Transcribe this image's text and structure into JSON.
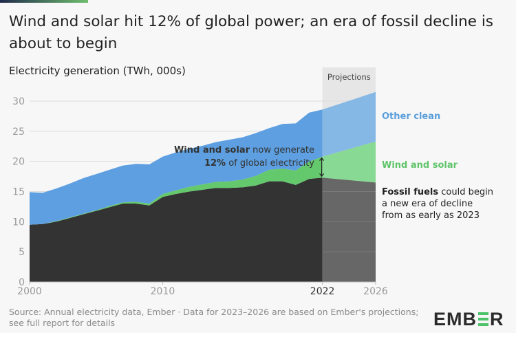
{
  "title": "Wind and solar hit 12% of global power; an era of fossil decline is about to begin",
  "colors": {
    "fossil": "#333333",
    "fossil_proj": "#676767",
    "wind_solar": "#64c86d",
    "wind_solar_proj": "#88d994",
    "other_clean": "#5d9fe0",
    "other_clean_proj": "#86b8e6",
    "projection_band": "#e6e6e6",
    "label_other_clean": "#5a9fdc",
    "label_wind_solar": "#5fc46a"
  },
  "chart_data": {
    "type": "area",
    "stacked": true,
    "title": "Wind and solar hit 12% of global power; an era of fossil decline is about to begin",
    "ylabel": "Electricity generation (TWh, 000s)",
    "xlabel": "",
    "ylim": [
      0,
      32
    ],
    "yticks": [
      "0",
      "5",
      "10",
      "15",
      "20",
      "25",
      "30"
    ],
    "xticks": [
      "2000",
      "2010",
      "2022",
      "2026"
    ],
    "grid": true,
    "projection_label": "Projections",
    "projection_range": [
      2022,
      2026
    ],
    "x": [
      2000,
      2001,
      2002,
      2003,
      2004,
      2005,
      2006,
      2007,
      2008,
      2009,
      2010,
      2011,
      2012,
      2013,
      2014,
      2015,
      2016,
      2017,
      2018,
      2019,
      2020,
      2021,
      2022,
      2026
    ],
    "series": [
      {
        "name": "Fossil fuels",
        "values": [
          9.5,
          9.6,
          10.0,
          10.6,
          11.2,
          11.8,
          12.4,
          13.0,
          13.0,
          12.7,
          14.1,
          14.6,
          15.0,
          15.3,
          15.6,
          15.6,
          15.7,
          16.0,
          16.7,
          16.7,
          16.1,
          17.1,
          17.3,
          16.5
        ]
      },
      {
        "name": "Wind and solar",
        "values": [
          0.0,
          0.0,
          0.1,
          0.1,
          0.1,
          0.1,
          0.2,
          0.2,
          0.3,
          0.3,
          0.5,
          0.6,
          0.8,
          0.9,
          1.0,
          1.1,
          1.3,
          1.6,
          1.9,
          2.1,
          2.4,
          2.9,
          3.5,
          6.8
        ]
      },
      {
        "name": "Other clean",
        "values": [
          5.4,
          5.2,
          5.4,
          5.6,
          5.9,
          6.0,
          6.0,
          6.1,
          6.3,
          6.5,
          6.2,
          6.3,
          6.3,
          6.4,
          6.6,
          6.9,
          7.0,
          7.1,
          6.9,
          7.4,
          7.8,
          8.1,
          7.8,
          8.2
        ]
      }
    ]
  },
  "annotations": {
    "ws_bold": "Wind and solar",
    "ws_rest": " now generate",
    "ws_pct": "12%",
    "ws_rest2": " of global electricity",
    "label_other_clean": "Other clean",
    "label_wind_solar": "Wind and solar",
    "fossil_bold": "Fossil fuels",
    "fossil_rest1": " could begin",
    "fossil_line2": "a new era of decline",
    "fossil_line3": "from as early as 2023"
  },
  "source": "Source: Annual electricity data, Ember · Data for 2023–2026 are based on Ember's projections; see full report for details",
  "logo": "EMBER"
}
